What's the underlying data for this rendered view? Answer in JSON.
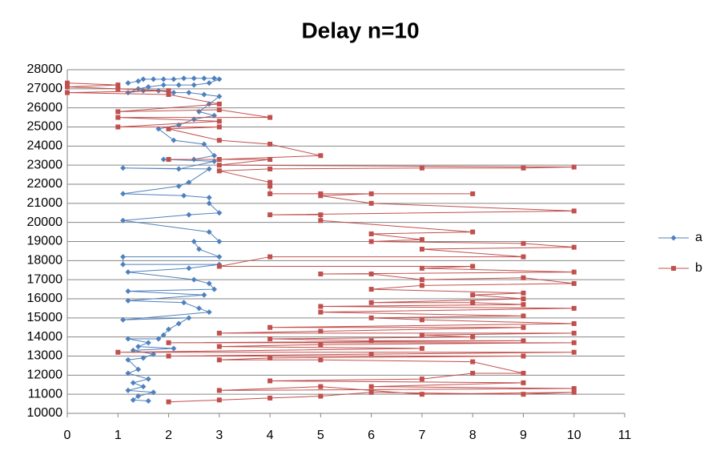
{
  "chart_data": {
    "type": "line",
    "title": "Delay n=10",
    "xlim": [
      0,
      11
    ],
    "xticks": [
      0,
      1,
      2,
      3,
      4,
      5,
      6,
      7,
      8,
      9,
      10,
      11
    ],
    "ylim": [
      10000,
      28000
    ],
    "yticks": [
      10000,
      11000,
      12000,
      13000,
      14000,
      15000,
      16000,
      17000,
      18000,
      19000,
      20000,
      21000,
      22000,
      23000,
      24000,
      25000,
      26000,
      27000,
      28000
    ],
    "grid": true,
    "legend": "right",
    "series": [
      {
        "name": "a",
        "color": "#4f81bd",
        "marker": "diamond",
        "x": [
          1.2,
          1.4,
          1.5,
          1.7,
          1.9,
          2.1,
          2.3,
          2.5,
          2.7,
          2.9,
          3,
          2.8,
          2.5,
          2.2,
          1.9,
          1.6,
          1.4,
          1.2,
          1.5,
          1.8,
          2.1,
          2.4,
          2.7,
          3,
          2.8,
          2.6,
          2.9,
          2.5,
          2.2,
          1.8,
          2.1,
          2.7,
          2.9,
          2.5,
          1.9,
          2.9,
          2.2,
          1.1,
          2.8,
          2.4,
          2.2,
          1.1,
          2.3,
          2.8,
          2.8,
          3,
          2.4,
          1.1,
          2.8,
          3,
          2.5,
          2.6,
          3,
          1.1,
          1.1,
          3,
          2.4,
          1.2,
          2.5,
          2.8,
          2.9,
          1.2,
          2.7,
          1.2,
          2.3,
          2.6,
          2.8,
          1.1,
          2.4,
          2.2,
          2.0,
          1.9,
          1.8,
          1.2,
          1.6,
          1.4,
          2.1,
          1.3,
          1.7,
          1.5,
          1.2,
          1.4,
          1.2,
          1.6,
          1.3,
          1.5,
          1.2,
          1.7,
          1.4,
          1.3,
          1.6
        ],
        "values": [
          27300,
          27400,
          27500,
          27500,
          27500,
          27500,
          27550,
          27550,
          27550,
          27550,
          27500,
          27300,
          27200,
          27200,
          27200,
          27100,
          27000,
          26800,
          26900,
          26900,
          26800,
          26800,
          26700,
          26600,
          26200,
          25800,
          25600,
          25400,
          25100,
          24900,
          24300,
          24100,
          23500,
          23300,
          23300,
          23200,
          22800,
          22850,
          22800,
          22100,
          21900,
          21500,
          21400,
          21300,
          21000,
          20500,
          20400,
          20100,
          19500,
          19000,
          19000,
          18600,
          18200,
          18200,
          17800,
          17800,
          17600,
          17400,
          17000,
          16800,
          16500,
          16400,
          16200,
          15900,
          15800,
          15500,
          15300,
          14900,
          15000,
          14700,
          14400,
          14100,
          13900,
          13900,
          13700,
          13500,
          13400,
          13300,
          13100,
          12900,
          12800,
          12300,
          12100,
          11800,
          11600,
          11400,
          11200,
          11100,
          10900,
          10700,
          10650
        ]
      },
      {
        "name": "b",
        "color": "#c0504d",
        "marker": "square",
        "x": [
          0,
          1,
          0,
          1,
          2,
          0,
          2,
          3,
          1,
          3,
          4,
          1,
          3,
          1,
          3,
          2,
          3,
          4,
          5,
          3,
          2,
          4,
          3,
          10,
          9,
          7,
          4,
          3,
          4,
          4,
          4,
          5,
          8,
          6,
          5,
          6,
          10,
          4,
          5,
          5,
          8,
          6,
          7,
          6,
          9,
          10,
          7,
          9,
          4,
          3,
          8,
          7,
          10,
          5,
          6,
          7,
          9,
          10,
          7,
          6,
          9,
          8,
          9,
          6,
          8,
          9,
          5,
          10,
          5,
          9,
          6,
          7,
          10,
          4,
          9,
          5,
          3,
          10,
          7,
          8,
          4,
          6,
          9,
          2,
          10,
          5,
          3,
          7,
          1,
          10,
          6,
          2,
          9,
          4,
          3,
          5,
          8,
          9,
          8,
          7,
          4,
          9,
          6,
          10,
          3,
          5,
          7,
          10,
          9,
          6,
          5,
          4,
          3,
          2
        ],
        "values": [
          27300,
          27200,
          27100,
          27000,
          26900,
          26800,
          26700,
          26200,
          25800,
          25900,
          25500,
          25500,
          25300,
          25000,
          25000,
          24900,
          24300,
          24100,
          23500,
          23300,
          23300,
          23300,
          23000,
          22900,
          22850,
          22850,
          22800,
          22700,
          22100,
          21900,
          21500,
          21500,
          21500,
          21500,
          21400,
          21000,
          20600,
          20400,
          20400,
          20100,
          19500,
          19400,
          19100,
          19000,
          18900,
          18700,
          18600,
          18200,
          18200,
          17700,
          17700,
          17600,
          17400,
          17300,
          17300,
          17000,
          17100,
          16800,
          16700,
          16500,
          16300,
          16200,
          16000,
          15800,
          15800,
          15700,
          15600,
          15500,
          15300,
          15100,
          15000,
          14900,
          14700,
          14500,
          14500,
          14300,
          14200,
          14200,
          14100,
          14000,
          13900,
          13800,
          13800,
          13700,
          13700,
          13600,
          13500,
          13400,
          13200,
          13200,
          13100,
          13000,
          13000,
          12900,
          12800,
          12800,
          12700,
          12100,
          12100,
          11800,
          11700,
          11600,
          11400,
          11300,
          11200,
          11400,
          11000,
          11100,
          11000,
          11100,
          10900,
          10800,
          10700,
          10600
        ]
      }
    ]
  }
}
